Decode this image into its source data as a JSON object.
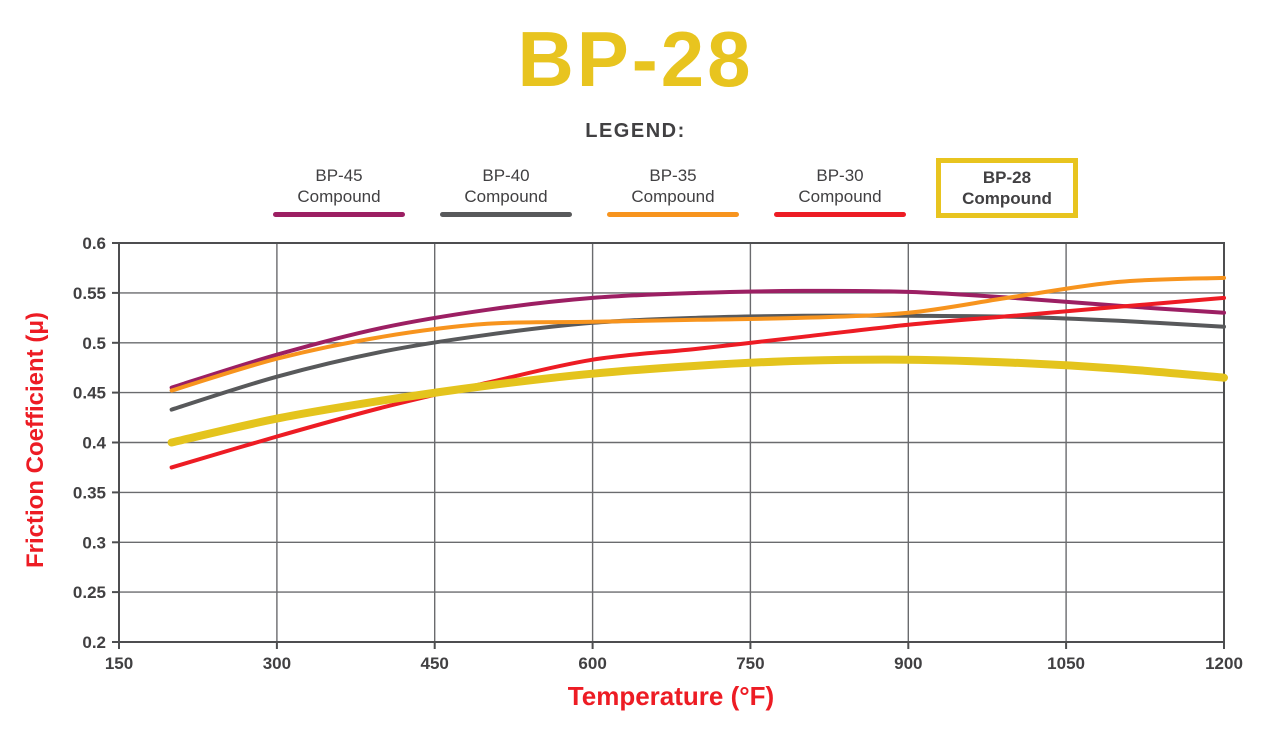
{
  "theme": {
    "yellow": "#e8c41f",
    "red": "#ed1c24",
    "text_dark": "#414042",
    "grid": "#6a6b6e",
    "axis": "#4d4e50",
    "background": "#ffffff"
  },
  "page": {
    "title": "BP-28"
  },
  "legend": {
    "heading": "LEGEND:",
    "items": [
      {
        "line1": "BP-45",
        "line2": "Compound",
        "color": "#9c1f63",
        "highlighted": false
      },
      {
        "line1": "BP-40",
        "line2": "Compound",
        "color": "#58595b",
        "highlighted": false
      },
      {
        "line1": "BP-35",
        "line2": "Compound",
        "color": "#f7941e",
        "highlighted": false
      },
      {
        "line1": "BP-30",
        "line2": "Compound",
        "color": "#ed1c24",
        "highlighted": false
      },
      {
        "line1": "BP-28",
        "line2": "Compound",
        "color": "#e8c41f",
        "highlighted": true
      }
    ]
  },
  "chart_data": {
    "type": "line",
    "title": "BP-28",
    "xlabel": "Temperature (°F)",
    "ylabel": "Friction Coefficient (μ)",
    "xlim": [
      150,
      1200
    ],
    "ylim": [
      0.2,
      0.6
    ],
    "xticks": [
      150,
      300,
      450,
      600,
      750,
      900,
      1050,
      1200
    ],
    "xtick_labels": [
      "150",
      "300",
      "450",
      "600",
      "750",
      "900",
      "1050",
      "1200"
    ],
    "yticks": [
      0.2,
      0.25,
      0.3,
      0.35,
      0.4,
      0.45,
      0.5,
      0.55,
      0.6
    ],
    "ytick_labels": [
      "0.2",
      "0.25",
      "0.3",
      "0.35",
      "0.4",
      "0.45",
      "0.5",
      "0.55",
      "0.6"
    ],
    "grid": true,
    "legend_position": "top",
    "x": [
      200,
      300,
      400,
      500,
      600,
      700,
      800,
      900,
      1000,
      1100,
      1200
    ],
    "series": [
      {
        "name": "BP-45 Compound",
        "color": "#9c1f63",
        "line_width": 4,
        "values": [
          0.455,
          0.488,
          0.515,
          0.533,
          0.545,
          0.55,
          0.552,
          0.551,
          0.545,
          0.537,
          0.53
        ]
      },
      {
        "name": "BP-40 Compound",
        "color": "#58595b",
        "line_width": 4,
        "values": [
          0.433,
          0.466,
          0.491,
          0.508,
          0.52,
          0.525,
          0.527,
          0.527,
          0.526,
          0.522,
          0.516
        ]
      },
      {
        "name": "BP-35 Compound",
        "color": "#f7941e",
        "line_width": 4,
        "values": [
          0.452,
          0.484,
          0.506,
          0.519,
          0.521,
          0.523,
          0.525,
          0.53,
          0.546,
          0.561,
          0.565
        ]
      },
      {
        "name": "BP-30 Compound",
        "color": "#ed1c24",
        "line_width": 4,
        "values": [
          0.375,
          0.406,
          0.435,
          0.46,
          0.483,
          0.494,
          0.506,
          0.518,
          0.527,
          0.536,
          0.545
        ]
      },
      {
        "name": "BP-28 Compound",
        "color": "#e4c41d",
        "line_width": 8,
        "values": [
          0.4,
          0.424,
          0.442,
          0.457,
          0.469,
          0.477,
          0.482,
          0.483,
          0.48,
          0.474,
          0.465
        ]
      }
    ]
  }
}
